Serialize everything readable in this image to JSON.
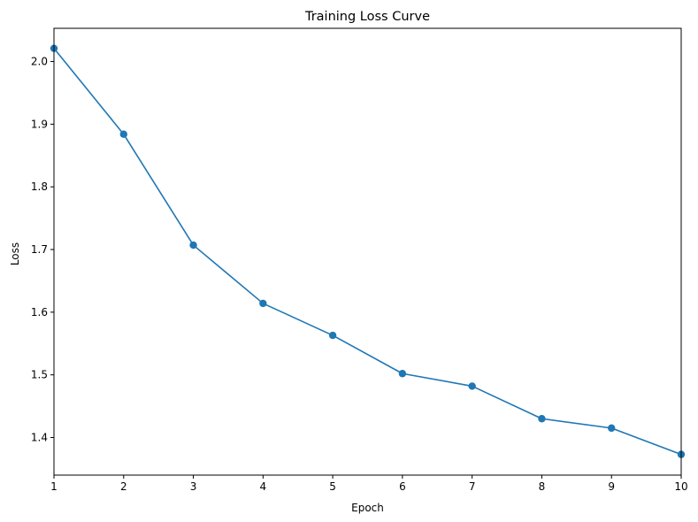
{
  "chart_data": {
    "type": "line",
    "title": "Training Loss Curve",
    "xlabel": "Epoch",
    "ylabel": "Loss",
    "xlim": [
      1,
      10
    ],
    "ylim": [
      1.34,
      2.053
    ],
    "xticks": [
      "1",
      "2",
      "3",
      "4",
      "5",
      "6",
      "7",
      "8",
      "9",
      "10"
    ],
    "yticks": [
      "1.4",
      "1.5",
      "1.6",
      "1.7",
      "1.8",
      "1.9",
      "2.0"
    ],
    "grid": false,
    "legend": "none",
    "series": [
      {
        "color": "#1f77b4",
        "marker": "circle",
        "x": [
          1,
          2,
          3,
          4,
          5,
          6,
          7,
          8,
          9,
          10
        ],
        "y": [
          2.021,
          1.884,
          1.707,
          1.614,
          1.563,
          1.502,
          1.482,
          1.43,
          1.415,
          1.373
        ]
      }
    ]
  }
}
